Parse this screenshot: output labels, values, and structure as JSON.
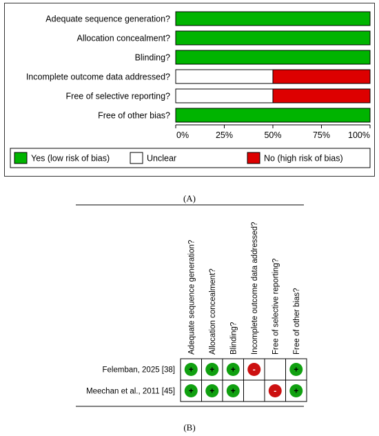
{
  "panel_a_caption": "(A)",
  "panel_b_caption": "(B)",
  "chart_data": [
    {
      "type": "bar",
      "stacked": true,
      "orientation": "horizontal",
      "categories": [
        "Adequate sequence generation?",
        "Allocation concealment?",
        "Blinding?",
        "Incomplete outcome data addressed?",
        "Free of selective reporting?",
        "Free of other bias?"
      ],
      "series": [
        {
          "name": "Yes (low risk of bias)",
          "color": "#00b400",
          "values": [
            100,
            100,
            100,
            0,
            0,
            100
          ]
        },
        {
          "name": "Unclear",
          "color": "#ffffff",
          "values": [
            0,
            0,
            0,
            50,
            50,
            0
          ]
        },
        {
          "name": "No (high risk of bias)",
          "color": "#dd0000",
          "values": [
            0,
            0,
            0,
            50,
            50,
            0
          ]
        }
      ],
      "xlim": [
        0,
        100
      ],
      "xticks": [
        "0%",
        "25%",
        "50%",
        "75%",
        "100%"
      ],
      "legend_position": "bottom",
      "colors": {
        "yes": "#00b400",
        "no": "#dd0000",
        "unclear": "#ffffff"
      }
    },
    {
      "type": "table",
      "columns": [
        "Adequate sequence generation?",
        "Allocation concealment?",
        "Blinding?",
        "Incomplete outcome data addressed?",
        "Free of selective reporting?",
        "Free of other bias?"
      ],
      "rows": [
        {
          "study": "Felemban, 2025 [38]",
          "judgements": [
            "+",
            "+",
            "+",
            "-",
            "",
            "+"
          ]
        },
        {
          "study": "Meechan et al., 2011 [45]",
          "judgements": [
            "+",
            "+",
            "+",
            "",
            "-",
            "+"
          ]
        }
      ],
      "symbols": {
        "+": "low risk",
        "-": "high risk",
        "": "unclear"
      },
      "colors": {
        "low": "#10a010",
        "high": "#cc1010"
      }
    }
  ]
}
